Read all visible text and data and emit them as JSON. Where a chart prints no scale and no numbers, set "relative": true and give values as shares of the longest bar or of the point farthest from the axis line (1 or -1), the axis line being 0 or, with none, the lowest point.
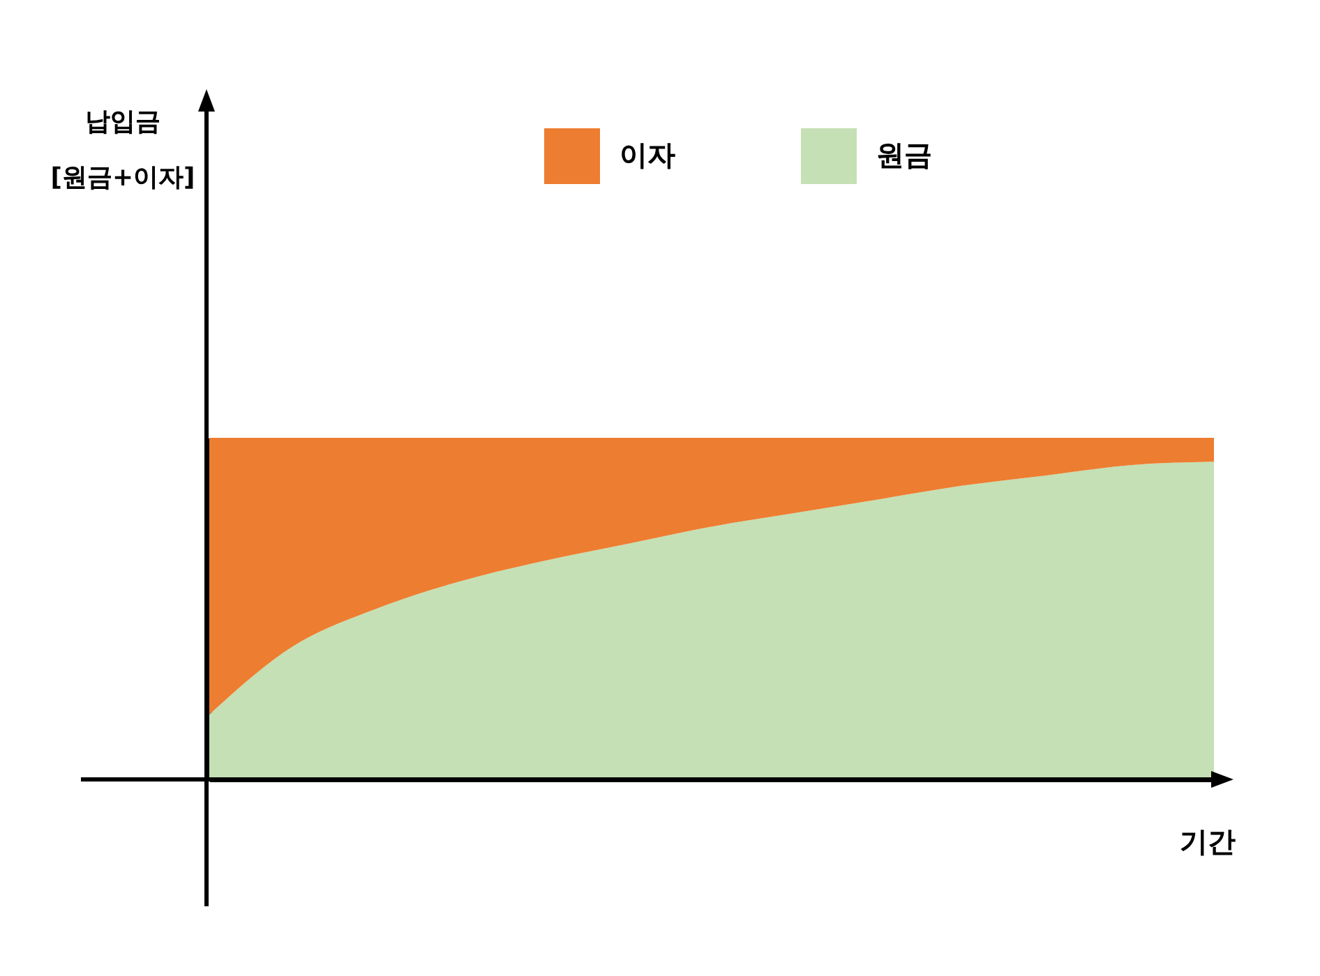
{
  "chart_data": {
    "type": "area",
    "stacked": true,
    "relative": true,
    "xlabel": "기간",
    "annotations": [
      "납입금\n[원금+이자]"
    ],
    "legend": "top right",
    "grid": false,
    "categories": [
      null,
      null,
      null,
      null,
      null,
      null,
      null,
      null,
      null,
      null,
      null,
      null,
      null
    ],
    "series": [
      {
        "name": "원금",
        "color": "#c5e0b4",
        "values": [
          0.19,
          0.39,
          0.5,
          0.58,
          0.64,
          0.69,
          0.74,
          0.78,
          0.82,
          0.86,
          0.89,
          0.92,
          0.93
        ]
      },
      {
        "name": "이자",
        "color": "#ed7d31",
        "values": [
          0.81,
          0.61,
          0.5,
          0.42,
          0.36,
          0.31,
          0.26,
          0.22,
          0.18,
          0.14,
          0.11,
          0.08,
          0.07
        ]
      }
    ]
  }
}
